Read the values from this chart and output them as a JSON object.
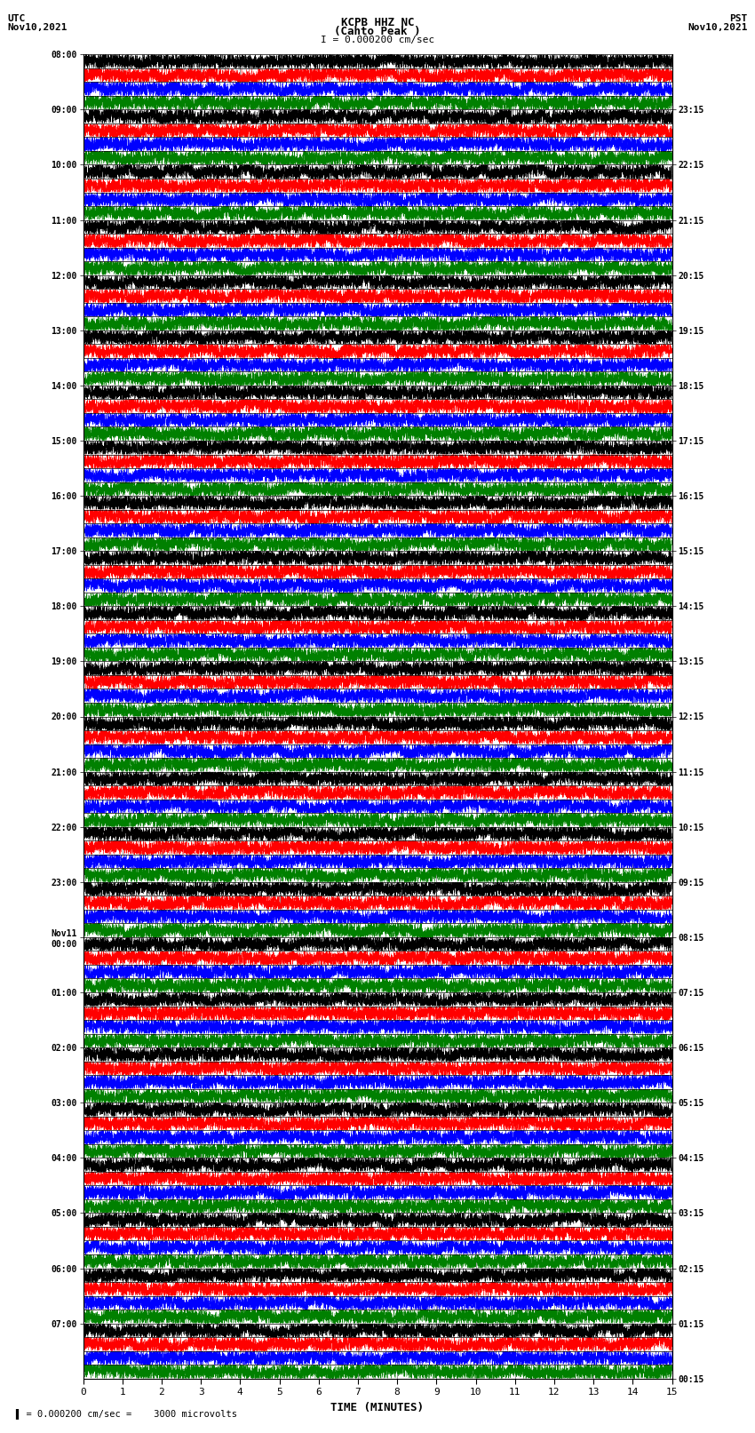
{
  "title_line1": "KCPB HHZ NC",
  "title_line2": "(Cahto Peak )",
  "scale_text": "I = 0.000200 cm/sec",
  "left_header": "UTC\nNov10,2021",
  "right_header": "PST\nNov10,2021",
  "bottom_label": "TIME (MINUTES)",
  "bottom_note": "= 0.000200 cm/sec =    3000 microvolts",
  "x_min": 0,
  "x_max": 15,
  "x_ticks": [
    0,
    1,
    2,
    3,
    4,
    5,
    6,
    7,
    8,
    9,
    10,
    11,
    12,
    13,
    14,
    15
  ],
  "left_times": [
    "08:00",
    "09:00",
    "10:00",
    "11:00",
    "12:00",
    "13:00",
    "14:00",
    "15:00",
    "16:00",
    "17:00",
    "18:00",
    "19:00",
    "20:00",
    "21:00",
    "22:00",
    "23:00",
    "Nov11\n00:00",
    "01:00",
    "02:00",
    "03:00",
    "04:00",
    "05:00",
    "06:00",
    "07:00"
  ],
  "right_times": [
    "00:15",
    "01:15",
    "02:15",
    "03:15",
    "04:15",
    "05:15",
    "06:15",
    "07:15",
    "08:15",
    "09:15",
    "10:15",
    "11:15",
    "12:15",
    "13:15",
    "14:15",
    "15:15",
    "16:15",
    "17:15",
    "18:15",
    "19:15",
    "20:15",
    "21:15",
    "22:15",
    "23:15"
  ],
  "num_rows": 24,
  "sub_rows": 4,
  "color_cycle": [
    "black",
    "red",
    "blue",
    "green"
  ],
  "seed": 42
}
